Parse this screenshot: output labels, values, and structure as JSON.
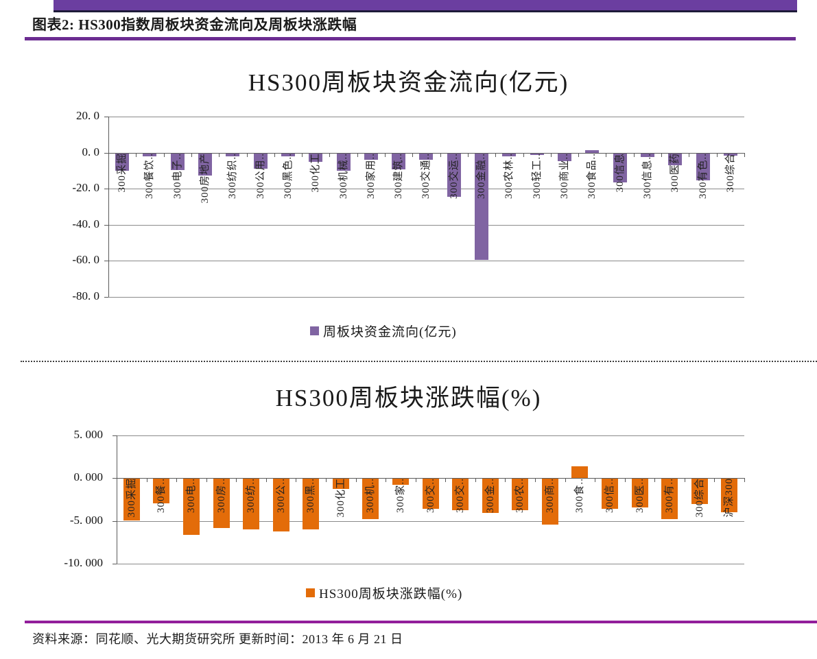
{
  "colors": {
    "top_band": "#6B3EA0",
    "band_underline": "#1E1B39",
    "header_rule": "#6B2C91",
    "footer_rule": "#921E9B"
  },
  "header": {
    "title": "图表2: HS300指数周板块资金流向及周板块涨跌幅"
  },
  "footer": {
    "source_text": "资料来源：同花顺、光大期货研究所 更新时间：2013 年 6 月 21 日"
  },
  "chart_data": [
    {
      "type": "bar",
      "title": "HS300周板块资金流向(亿元)",
      "legend": "周板块资金流向(亿元)",
      "legend_position": "bottom",
      "bar_color": "#8064A2",
      "grid": true,
      "ylim": [
        -80,
        20
      ],
      "ytick_values": [
        20,
        0,
        -20,
        -40,
        -60,
        -80
      ],
      "ytick_labels": [
        "20. 0",
        "0. 0",
        "-20. 0",
        "-40. 0",
        "-60. 0",
        "-80. 0"
      ],
      "categories": [
        "300采掘",
        "300餐饮..",
        "300电子..",
        "300房地产",
        "300纺织..",
        "300公用..",
        "300黑色..",
        "300化工",
        "300机械..",
        "300家用..",
        "300建筑..",
        "300交通..",
        "300交运..",
        "300金融..",
        "300农林..",
        "300轻工..",
        "300商业..",
        "300食品..",
        "300信息",
        "300信息..",
        "300医药",
        "300有色..",
        "300综合"
      ],
      "values": [
        -9.5,
        -1.5,
        -9.0,
        -12.0,
        -1.5,
        -8.5,
        -1.5,
        -4.5,
        -9.5,
        -3.5,
        -8.8,
        -3.5,
        -24.0,
        -59.0,
        -1.5,
        -0.8,
        -4.0,
        1.5,
        -16.0,
        -2.0,
        -6.5,
        -15.0,
        -1.0
      ]
    },
    {
      "type": "bar",
      "title": "HS300周板块涨跌幅(%)",
      "legend": "HS300周板块涨跌幅(%)",
      "legend_position": "bottom",
      "bar_color": "#E36C09",
      "grid": true,
      "ylim": [
        -10,
        5
      ],
      "ytick_values": [
        5,
        0,
        -5,
        -10
      ],
      "ytick_labels": [
        "5. 000",
        "0. 000",
        "-5. 000",
        "-10. 000"
      ],
      "categories": [
        "300采掘",
        "300餐..",
        "300电..",
        "300房..",
        "300纺..",
        "300公..",
        "300黑..",
        "300化工",
        "300机..",
        "300家..",
        "300交..",
        "300交..",
        "300金..",
        "300农..",
        "300商..",
        "300食..",
        "300信..",
        "300医..",
        "300有..",
        "300综合",
        "沪深300"
      ],
      "values": [
        -4.9,
        -2.9,
        -6.6,
        -5.8,
        -5.9,
        -6.2,
        -5.9,
        -1.2,
        -4.7,
        -0.7,
        -3.5,
        -3.7,
        -4.0,
        -3.7,
        -5.4,
        1.35,
        -3.5,
        -3.4,
        -4.7,
        -3.0,
        -3.9
      ]
    }
  ]
}
